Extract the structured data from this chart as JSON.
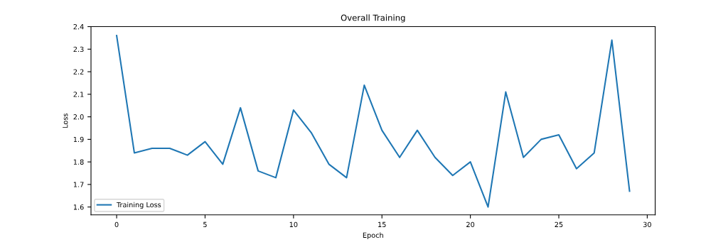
{
  "chart_data": {
    "type": "line",
    "title": "Overall Training",
    "xlabel": "Epoch",
    "ylabel": "Loss",
    "x": [
      0,
      1,
      2,
      3,
      4,
      5,
      6,
      7,
      8,
      9,
      10,
      11,
      12,
      13,
      14,
      15,
      16,
      17,
      18,
      19,
      20,
      21,
      22,
      23,
      24,
      25,
      26,
      27,
      28,
      29
    ],
    "series": [
      {
        "name": "Training Loss",
        "color": "#1f77b4",
        "values": [
          2.36,
          1.84,
          1.86,
          1.86,
          1.83,
          1.89,
          1.79,
          2.04,
          1.76,
          1.73,
          2.03,
          1.93,
          1.79,
          1.73,
          2.14,
          1.94,
          1.82,
          1.94,
          1.82,
          1.74,
          1.8,
          1.6,
          2.11,
          1.82,
          1.9,
          1.92,
          1.77,
          1.84,
          2.34,
          1.67
        ]
      }
    ],
    "xlim": [
      -1.45,
      30.45
    ],
    "ylim": [
      1.565,
      2.4
    ],
    "xticks": [
      0,
      5,
      10,
      15,
      20,
      25,
      30
    ],
    "yticks": [
      {
        "value": 1.6,
        "label": "1.6"
      },
      {
        "value": 1.7,
        "label": "1.7"
      },
      {
        "value": 1.8,
        "label": "1.8"
      },
      {
        "value": 1.9,
        "label": "1.9"
      },
      {
        "value": 2.0,
        "label": "2.0"
      },
      {
        "value": 2.1,
        "label": "2.1"
      },
      {
        "value": 2.2,
        "label": "2.2"
      },
      {
        "value": 2.3,
        "label": "2.3"
      },
      {
        "value": 2.4,
        "label": "2.4"
      }
    ],
    "legend": "lower left",
    "grid": false
  }
}
